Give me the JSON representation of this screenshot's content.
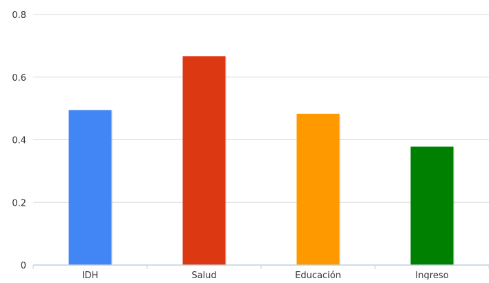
{
  "chart_data": {
    "type": "bar",
    "categories": [
      "IDH",
      "Salud",
      "Educación",
      "Ingreso"
    ],
    "values": [
      0.495,
      0.667,
      0.483,
      0.378
    ],
    "colors": [
      "#4285f4",
      "#dc3912",
      "#ff9900",
      "#008000"
    ],
    "ylim": [
      0,
      0.8
    ],
    "yticks": [
      0,
      0.2,
      0.4,
      0.6,
      0.8
    ],
    "ytick_labels": [
      "0",
      "0.2",
      "0.4",
      "0.6",
      "0.8"
    ],
    "grid": true,
    "legend": "none"
  }
}
